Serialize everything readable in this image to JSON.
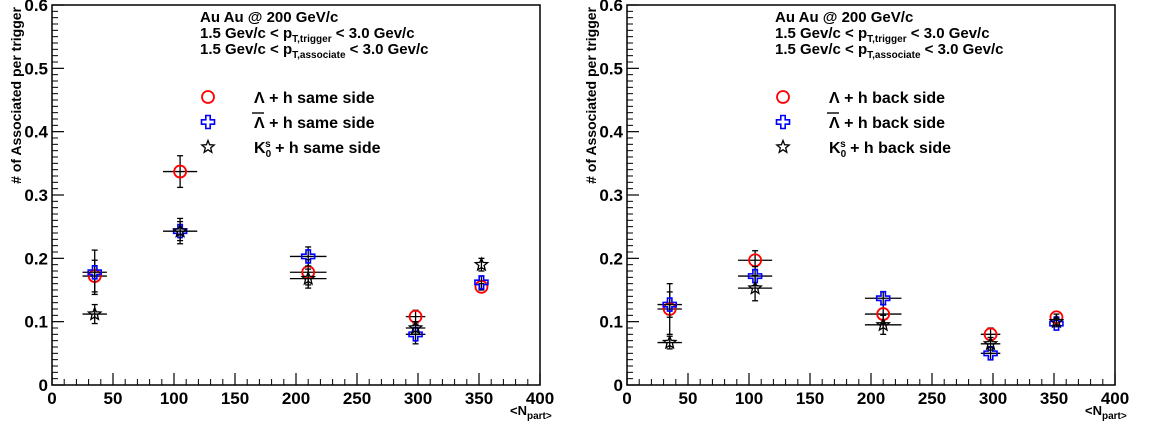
{
  "chart_data": [
    {
      "type": "scatter",
      "xlabel": "<N_part>",
      "ylabel": "# of Associated per trigger",
      "xlim": [
        0,
        400
      ],
      "ylim": [
        0,
        0.6
      ],
      "x_ticks": [
        "0",
        "50",
        "100",
        "150",
        "200",
        "250",
        "300",
        "350",
        "400"
      ],
      "y_ticks": [
        "0",
        "0.1",
        "0.2",
        "0.3",
        "0.4",
        "0.5",
        "0.6"
      ],
      "annotations": [
        "Au Au @ 200 GeV/c",
        "1.5 Gev/c < p_T,trigger < 3.0 Gev/c",
        "1.5 Gev/c < p_T,associate < 3.0 Gev/c"
      ],
      "series": [
        {
          "name": "Λ + h same side",
          "marker": "open-circle",
          "color": "#ff0000",
          "x": [
            35,
            105,
            210,
            298,
            352
          ],
          "y": [
            0.172,
            0.337,
            0.178,
            0.108,
            0.155
          ],
          "xerr": [
            10,
            14,
            15,
            8,
            0
          ],
          "yerr": [
            0.025,
            0.025,
            0.02,
            0.01,
            0.005
          ]
        },
        {
          "name": "Λ̄ + h same side",
          "marker": "open-cross",
          "color": "#0000ff",
          "x": [
            35,
            105,
            210,
            298,
            352
          ],
          "y": [
            0.178,
            0.243,
            0.203,
            0.08,
            0.162
          ],
          "xerr": [
            10,
            14,
            15,
            8,
            0
          ],
          "yerr": [
            0.035,
            0.02,
            0.015,
            0.015,
            0.01
          ]
        },
        {
          "name": "K0s + h same side",
          "marker": "open-star",
          "color": "#000000",
          "x": [
            35,
            105,
            210,
            298,
            352
          ],
          "y": [
            0.112,
            0.243,
            0.168,
            0.09,
            0.19
          ],
          "xerr": [
            10,
            14,
            15,
            8,
            0
          ],
          "yerr": [
            0.015,
            0.015,
            0.015,
            0.01,
            0.01
          ]
        }
      ],
      "legend": [
        "Λ + h same side",
        "Λ̄ + h same side",
        "K0s + h same side"
      ]
    },
    {
      "type": "scatter",
      "xlabel": "<N_part>",
      "ylabel": "# of Associated per trigger",
      "xlim": [
        0,
        400
      ],
      "ylim": [
        0,
        0.6
      ],
      "x_ticks": [
        "0",
        "50",
        "100",
        "150",
        "200",
        "250",
        "300",
        "350",
        "400"
      ],
      "y_ticks": [
        "0",
        "0.1",
        "0.2",
        "0.3",
        "0.4",
        "0.5",
        "0.6"
      ],
      "annotations": [
        "Au Au @ 200 GeV/c",
        "1.5 Gev/c < p_T,trigger < 3.0 Gev/c",
        "1.5 Gev/c < p_T,associate < 3.0 Gev/c"
      ],
      "series": [
        {
          "name": "Λ + h back side",
          "marker": "open-circle",
          "color": "#ff0000",
          "x": [
            35,
            105,
            210,
            298,
            352
          ],
          "y": [
            0.12,
            0.197,
            0.112,
            0.08,
            0.107
          ],
          "xerr": [
            10,
            14,
            15,
            8,
            0
          ],
          "yerr": [
            0.04,
            0.015,
            0.015,
            0.01,
            0.005
          ]
        },
        {
          "name": "Λ̄ + h back side",
          "marker": "open-cross",
          "color": "#0000ff",
          "x": [
            35,
            105,
            210,
            298,
            352
          ],
          "y": [
            0.127,
            0.172,
            0.137,
            0.05,
            0.097
          ],
          "xerr": [
            10,
            14,
            15,
            8,
            0
          ],
          "yerr": [
            0.02,
            0.015,
            0.01,
            0.01,
            0.005
          ]
        },
        {
          "name": "K0s + h back side",
          "marker": "open-star",
          "color": "#000000",
          "x": [
            35,
            105,
            210,
            298,
            352
          ],
          "y": [
            0.067,
            0.153,
            0.095,
            0.065,
            0.1
          ],
          "xerr": [
            10,
            14,
            15,
            8,
            0
          ],
          "yerr": [
            0.01,
            0.02,
            0.015,
            0.01,
            0.005
          ]
        }
      ],
      "legend": [
        "Λ + h back side",
        "Λ̄ + h back side",
        "K0s + h back side"
      ]
    }
  ]
}
